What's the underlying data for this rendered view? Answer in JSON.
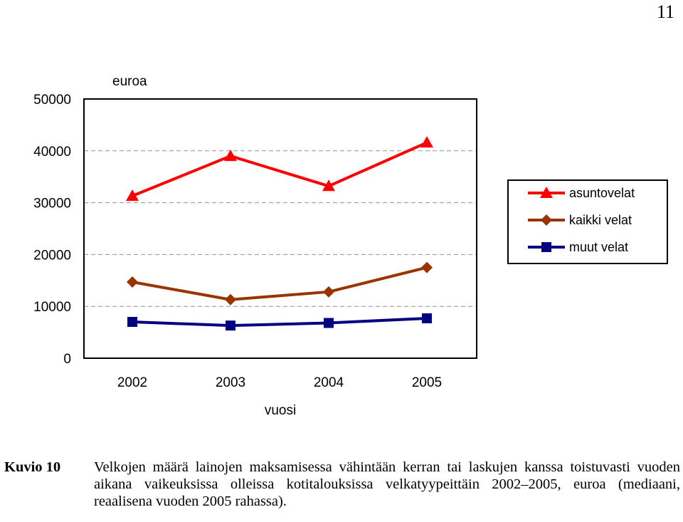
{
  "page_number": "11",
  "chart_data": {
    "type": "line",
    "ylabel": "euroa",
    "xlabel": "vuosi",
    "categories": [
      "2002",
      "2003",
      "2004",
      "2005"
    ],
    "ylim": [
      0,
      50000
    ],
    "yticks": [
      "0",
      "10000",
      "20000",
      "30000",
      "40000",
      "50000"
    ],
    "grid": "horizontal dashed",
    "legend_position": "right",
    "series": [
      {
        "name": "asuntovelat",
        "values": [
          31300,
          39000,
          33200,
          41600
        ],
        "color": "#ff0000",
        "marker": "triangle"
      },
      {
        "name": "kaikki velat",
        "values": [
          14700,
          11300,
          12800,
          17500
        ],
        "color": "#993300",
        "marker": "diamond"
      },
      {
        "name": "muut velat",
        "values": [
          7000,
          6300,
          6800,
          7700
        ],
        "color": "#000080",
        "marker": "square"
      }
    ]
  },
  "caption": {
    "label": "Kuvio 10",
    "text": "Velkojen määrä lainojen maksamisessa vähintään kerran tai laskujen kanssa toistuvasti vuoden aikana vaikeuksissa olleissa kotitalouksissa velkatyypeittäin 2002–2005, euroa (mediaani, reaalisena vuoden 2005 rahassa)."
  }
}
